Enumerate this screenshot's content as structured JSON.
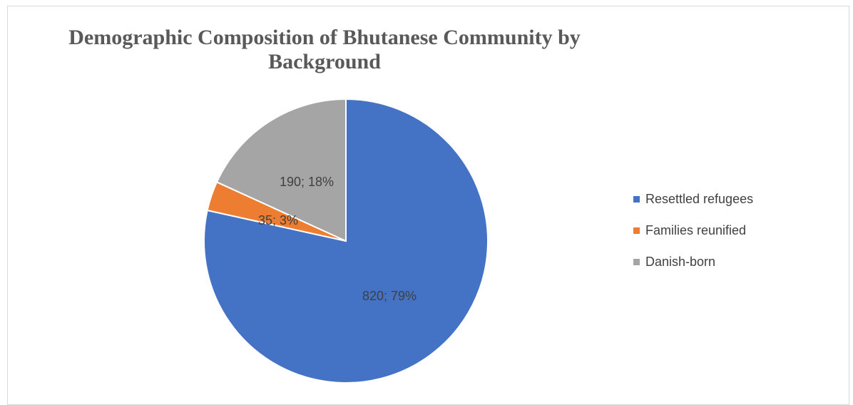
{
  "chart_data": {
    "type": "pie",
    "title": "Demographic Composition of Bhutanese Community by Background",
    "categories": [
      "Resettled refugees",
      "Families reunified",
      "Danish-born"
    ],
    "values": [
      820,
      35,
      190
    ],
    "percents": [
      79,
      3,
      18
    ],
    "data_labels": [
      "820; 79%",
      "35; 3%",
      "190; 18%"
    ],
    "colors": [
      "#4472C4",
      "#ED7D31",
      "#A5A5A5"
    ],
    "legend_position": "right"
  }
}
